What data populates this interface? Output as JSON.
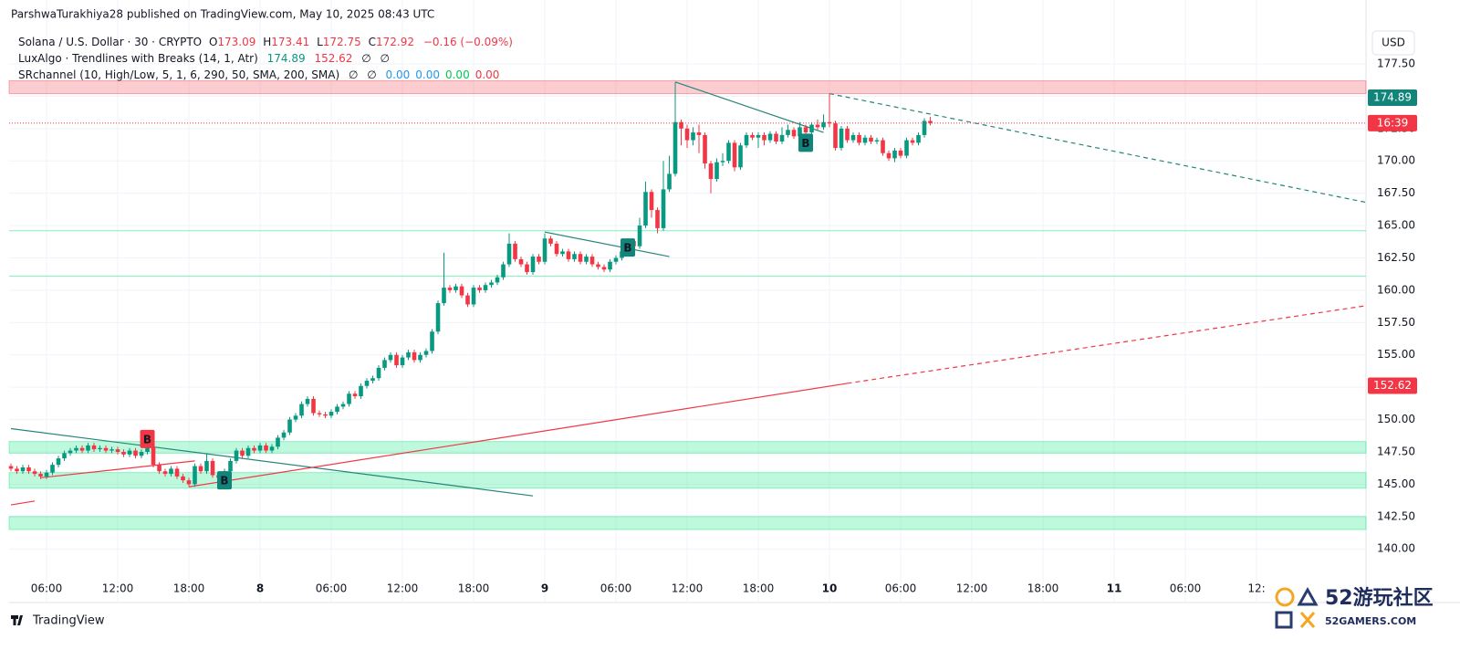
{
  "header": "ParshwaTurakhiya28 published on TradingView.com, May 10, 2025 08:43 UTC",
  "legend": {
    "symbol": "Solana / U.S. Dollar · 30 · CRYPTO",
    "o": "O",
    "h": "H",
    "l": "L",
    "c": "C",
    "change": "−0.16 (−0.09%)",
    "lux": "LuxAlgo · Trendlines with Breaks (14, 1, Atr)",
    "lux_na": [
      "∅",
      "∅"
    ],
    "sr": "SRchannel (10, High/Low, 5, 1, 6, 290, 50, SMA, 200, SMA)",
    "sr_na": [
      "∅",
      "∅"
    ],
    "sr_values": [
      {
        "text": "0.00",
        "color": "#2196f3"
      },
      {
        "text": "0.00",
        "color": "#2196f3"
      },
      {
        "text": "0.00",
        "color": "#00c853"
      },
      {
        "text": "0.00",
        "color": "#f23645"
      }
    ]
  },
  "currency": "USD",
  "countdown": "16:39",
  "logo": "TradingView",
  "watermark": {
    "big": "52游玩社区",
    "small": "52GAMERS.COM"
  },
  "chart_data": {
    "type": "candlestick",
    "up_color": "#089981",
    "down_color": "#f23645",
    "xlim": [
      -0.31,
      228.46
    ],
    "ylim": [
      137.97,
      179.97
    ],
    "grid": true,
    "xticks": [
      {
        "value": 6,
        "label": "06:00"
      },
      {
        "value": 18,
        "label": "12:00"
      },
      {
        "value": 30,
        "label": "18:00"
      },
      {
        "value": 42,
        "label": "8"
      },
      {
        "value": 54,
        "label": "06:00"
      },
      {
        "value": 66,
        "label": "12:00"
      },
      {
        "value": 78,
        "label": "18:00"
      },
      {
        "value": 90,
        "label": "9"
      },
      {
        "value": 102,
        "label": "06:00"
      },
      {
        "value": 114,
        "label": "12:00"
      },
      {
        "value": 126,
        "label": "18:00"
      },
      {
        "value": 138,
        "label": "10"
      },
      {
        "value": 150,
        "label": "06:00"
      },
      {
        "value": 162,
        "label": "12:00"
      },
      {
        "value": 174,
        "label": "18:00"
      },
      {
        "value": 186,
        "label": "11"
      },
      {
        "value": 198,
        "label": "06:00"
      },
      {
        "value": 210,
        "label": "12:"
      }
    ],
    "yticks": [
      {
        "value": 140,
        "label": "140.00"
      },
      {
        "value": 142.5,
        "label": "142.50"
      },
      {
        "value": 145,
        "label": "145.00"
      },
      {
        "value": 147.5,
        "label": "147.50"
      },
      {
        "value": 150,
        "label": "150.00"
      },
      {
        "value": 152.5,
        "label": "152.50"
      },
      {
        "value": 155,
        "label": "155.00"
      },
      {
        "value": 157.5,
        "label": "157.50"
      },
      {
        "value": 160,
        "label": "160.00"
      },
      {
        "value": 162.5,
        "label": "162.50"
      },
      {
        "value": 165,
        "label": "165.00"
      },
      {
        "value": 167.5,
        "label": "167.50"
      },
      {
        "value": 170,
        "label": "170.00"
      },
      {
        "value": 172.5,
        "label": "172.50"
      },
      {
        "value": 175,
        "label": "175.00"
      },
      {
        "value": 177.5,
        "label": "177.50"
      }
    ],
    "open": [
      146.4,
      146.2,
      146.0,
      146.3,
      146.0,
      145.8,
      145.6,
      145.9,
      146.5,
      147.0,
      147.4,
      147.6,
      147.8,
      147.6,
      148.0,
      147.7,
      147.8,
      147.6,
      147.7,
      147.5,
      147.3,
      147.6,
      147.2,
      147.5,
      147.9,
      146.5,
      146.0,
      145.8,
      146.2,
      145.6,
      145.3,
      145.0,
      146.4,
      146.0,
      146.8,
      145.7,
      145.5,
      146.0,
      146.8,
      147.6,
      147.2,
      147.8,
      147.6,
      148.0,
      147.6,
      147.9,
      148.6,
      149.0,
      150.0,
      150.3,
      151.2,
      151.6,
      150.5,
      150.4,
      150.3,
      150.6,
      151.0,
      151.2,
      152.0,
      151.8,
      152.6,
      153.0,
      153.2,
      154.0,
      154.6,
      155.0,
      154.2,
      154.8,
      155.2,
      154.6,
      155.0,
      155.3,
      156.8,
      159.0,
      160.2,
      160.0,
      160.3,
      159.6,
      158.9,
      160.2,
      160.0,
      160.4,
      160.6,
      161.0,
      162.0,
      163.6,
      162.4,
      162.0,
      161.4,
      162.6,
      162.2,
      164.0,
      163.6,
      162.8,
      163.0,
      162.4,
      162.8,
      162.2,
      162.6,
      162.0,
      161.8,
      161.6,
      162.2,
      162.5,
      163.0,
      163.8,
      163.4,
      165.0,
      167.6,
      166.2,
      164.8,
      167.8,
      169.0,
      173.0,
      172.5,
      171.6,
      172.2,
      172.0,
      169.8,
      168.6,
      169.9,
      170.0,
      171.4,
      169.5,
      171.2,
      172.0,
      171.8,
      172.0,
      171.6,
      172.1,
      171.5,
      172.0,
      172.4,
      171.9,
      172.6,
      172.2,
      172.8,
      172.6,
      173.0,
      172.9,
      171.0,
      172.5,
      171.6,
      172.0,
      171.4,
      171.8,
      171.5,
      171.6,
      170.6,
      170.2,
      170.8,
      170.4,
      171.6,
      171.4,
      172.0,
      173.09
    ],
    "high": [
      146.6,
      146.4,
      146.5,
      146.5,
      146.2,
      146.0,
      146.1,
      146.7,
      147.2,
      147.6,
      147.8,
      148.0,
      148.0,
      148.2,
      148.2,
      148.0,
      148.0,
      147.9,
      147.9,
      147.7,
      147.8,
      147.8,
      147.7,
      148.1,
      148.1,
      146.7,
      146.2,
      146.4,
      146.4,
      145.8,
      145.5,
      146.6,
      146.6,
      147.4,
      147.0,
      145.9,
      146.2,
      147.0,
      147.8,
      147.8,
      148.0,
      148.0,
      148.2,
      148.2,
      148.1,
      148.8,
      149.2,
      150.2,
      150.5,
      151.4,
      151.8,
      151.8,
      150.7,
      150.6,
      150.8,
      151.2,
      151.4,
      152.2,
      152.2,
      152.8,
      153.2,
      153.4,
      154.2,
      154.8,
      155.2,
      155.2,
      155.0,
      155.4,
      155.4,
      155.2,
      155.5,
      157.0,
      159.2,
      162.9,
      160.4,
      160.5,
      160.5,
      159.8,
      160.4,
      160.4,
      160.6,
      160.8,
      161.2,
      162.2,
      164.4,
      163.8,
      162.6,
      162.2,
      162.8,
      162.8,
      164.4,
      164.2,
      163.8,
      163.2,
      163.2,
      163.0,
      163.0,
      162.8,
      162.8,
      162.2,
      162.0,
      162.4,
      162.7,
      163.2,
      164.0,
      164.0,
      165.6,
      168.4,
      167.8,
      166.4,
      170.0,
      170.4,
      176.1,
      173.2,
      172.8,
      172.6,
      172.8,
      172.2,
      170.0,
      170.2,
      170.6,
      171.6,
      171.6,
      171.4,
      172.2,
      172.2,
      172.2,
      172.2,
      172.3,
      172.3,
      172.6,
      172.8,
      172.6,
      173.0,
      172.8,
      173.0,
      173.2,
      173.6,
      175.2,
      173.1,
      172.7,
      172.7,
      172.2,
      172.2,
      172.0,
      172.0,
      171.8,
      171.8,
      170.8,
      171.0,
      171.0,
      171.8,
      171.8,
      172.2,
      173.3,
      173.41
    ],
    "low": [
      146.0,
      145.8,
      145.8,
      145.8,
      145.6,
      145.4,
      145.4,
      145.7,
      146.3,
      146.8,
      147.2,
      147.4,
      147.4,
      147.4,
      147.5,
      147.5,
      147.4,
      147.4,
      147.3,
      147.1,
      147.1,
      147.0,
      147.0,
      147.3,
      146.3,
      145.8,
      145.6,
      145.6,
      145.4,
      145.1,
      144.8,
      144.8,
      145.8,
      145.8,
      145.5,
      145.3,
      145.3,
      145.8,
      146.6,
      147.0,
      147.0,
      147.4,
      147.4,
      147.4,
      147.4,
      147.7,
      148.4,
      148.8,
      149.8,
      150.1,
      151.0,
      150.3,
      150.2,
      150.1,
      150.1,
      150.4,
      150.8,
      151.0,
      151.6,
      151.6,
      152.4,
      152.8,
      153.0,
      153.8,
      154.4,
      154.0,
      154.0,
      154.6,
      154.4,
      154.4,
      154.8,
      155.1,
      156.6,
      158.8,
      159.8,
      159.8,
      159.4,
      158.7,
      158.7,
      159.8,
      159.8,
      160.2,
      160.4,
      160.8,
      161.8,
      162.2,
      161.8,
      161.2,
      161.2,
      162.0,
      162.0,
      163.4,
      162.6,
      162.6,
      162.2,
      162.2,
      162.0,
      162.0,
      161.8,
      161.6,
      161.4,
      161.4,
      162.0,
      162.3,
      162.8,
      163.2,
      163.2,
      164.8,
      165.6,
      164.4,
      164.6,
      167.6,
      168.8,
      171.2,
      171.0,
      171.2,
      170.6,
      169.4,
      167.5,
      168.4,
      169.6,
      169.8,
      169.2,
      169.3,
      171.0,
      171.6,
      171.0,
      171.2,
      171.4,
      171.3,
      171.3,
      171.8,
      171.7,
      171.6,
      171.5,
      172.0,
      172.4,
      172.4,
      172.6,
      170.8,
      170.8,
      171.4,
      171.4,
      171.2,
      171.2,
      171.3,
      171.3,
      170.4,
      170.0,
      169.9,
      170.2,
      170.2,
      171.2,
      171.2,
      171.8,
      172.75
    ],
    "close": [
      146.2,
      146.0,
      146.3,
      146.0,
      145.8,
      145.6,
      145.9,
      146.5,
      147.0,
      147.4,
      147.6,
      147.8,
      147.6,
      148.0,
      147.7,
      147.8,
      147.6,
      147.7,
      147.5,
      147.3,
      147.6,
      147.2,
      147.5,
      147.9,
      146.5,
      146.0,
      145.8,
      146.2,
      145.6,
      145.3,
      145.0,
      146.4,
      146.0,
      146.8,
      145.7,
      145.5,
      146.0,
      146.8,
      147.6,
      147.2,
      147.8,
      147.6,
      148.0,
      147.6,
      147.9,
      148.6,
      149.0,
      150.0,
      150.3,
      151.2,
      151.6,
      150.5,
      150.4,
      150.3,
      150.6,
      151.0,
      151.2,
      152.0,
      151.8,
      152.6,
      153.0,
      153.2,
      154.0,
      154.6,
      155.0,
      154.2,
      154.8,
      155.2,
      154.6,
      155.0,
      155.3,
      156.8,
      159.0,
      160.2,
      160.0,
      160.3,
      159.6,
      158.9,
      160.2,
      160.0,
      160.4,
      160.6,
      161.0,
      162.0,
      163.6,
      162.4,
      162.0,
      161.4,
      162.6,
      162.2,
      164.0,
      163.6,
      162.8,
      163.0,
      162.4,
      162.8,
      162.2,
      162.6,
      162.0,
      161.8,
      161.6,
      162.2,
      162.5,
      163.0,
      163.8,
      163.4,
      165.0,
      167.6,
      166.2,
      164.8,
      167.8,
      169.0,
      173.0,
      172.5,
      171.6,
      172.2,
      172.0,
      169.8,
      168.6,
      169.9,
      170.0,
      171.4,
      169.5,
      171.2,
      172.0,
      171.8,
      172.0,
      171.6,
      172.1,
      171.5,
      172.0,
      172.4,
      171.9,
      172.6,
      172.2,
      172.8,
      172.6,
      173.0,
      172.9,
      171.0,
      172.5,
      171.6,
      172.0,
      171.4,
      171.8,
      171.5,
      171.6,
      170.6,
      170.2,
      170.8,
      170.4,
      171.6,
      171.4,
      172.0,
      173.09,
      172.92
    ],
    "indicator_values": {
      "upper": 174.89,
      "lower": 152.62
    },
    "zones": [
      {
        "low": 175.2,
        "high": 176.2,
        "color": "#f23645"
      },
      {
        "low": 147.4,
        "high": 148.3,
        "color": "#00e676"
      },
      {
        "low": 144.7,
        "high": 145.9,
        "color": "#00e676"
      },
      {
        "low": 141.5,
        "high": 142.5,
        "color": "#00e676"
      }
    ],
    "levels": [
      {
        "value": 164.6,
        "color": "#00e676"
      },
      {
        "value": 161.1,
        "color": "#00e676"
      }
    ],
    "trendlines": [
      {
        "color": "#26857a",
        "dashed": false,
        "x": [
          112,
          137
        ],
        "y": [
          176.1,
          172.2
        ]
      },
      {
        "color": "#26857a",
        "dashed": true,
        "x": [
          138,
          228.4
        ],
        "y": [
          175.2,
          166.8
        ]
      },
      {
        "color": "#26857a",
        "dashed": false,
        "x": [
          90,
          111
        ],
        "y": [
          164.5,
          162.6
        ]
      },
      {
        "color": "#26857a",
        "dashed": false,
        "x": [
          0,
          88
        ],
        "y": [
          149.3,
          144.1
        ]
      },
      {
        "color": "#f23645",
        "dashed": false,
        "x": [
          30,
          141
        ],
        "y": [
          144.8,
          152.8
        ]
      },
      {
        "color": "#f23645",
        "dashed": true,
        "x": [
          141,
          228.4
        ],
        "y": [
          152.8,
          158.8
        ]
      },
      {
        "color": "#f23645",
        "dashed": false,
        "x": [
          5,
          31
        ],
        "y": [
          145.5,
          146.8
        ]
      },
      {
        "color": "#f23645",
        "dashed": false,
        "x": [
          0,
          4
        ],
        "y": [
          143.4,
          143.7
        ]
      }
    ],
    "signals": [
      {
        "label": "B",
        "x": 23,
        "y": 148.5,
        "color": "#f23645"
      },
      {
        "label": "B",
        "x": 36,
        "y": 145.3,
        "color": "#12857a"
      },
      {
        "label": "B",
        "x": 104,
        "y": 163.3,
        "color": "#12857a"
      },
      {
        "label": "B",
        "x": 134,
        "y": 171.4,
        "color": "#12857a"
      }
    ]
  }
}
